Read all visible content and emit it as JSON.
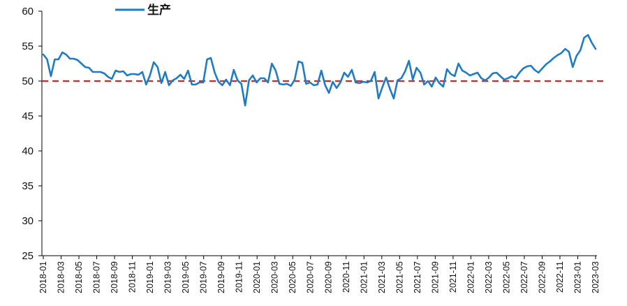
{
  "chart_data": {
    "type": "line",
    "ylim": [
      25,
      60
    ],
    "yticks": [
      "25",
      "30",
      "35",
      "40",
      "45",
      "50",
      "55",
      "60"
    ],
    "xticks": [
      "2018-01",
      "2018-03",
      "2018-05",
      "2018-07",
      "2018-09",
      "2018-11",
      "2019-01",
      "2019-03",
      "2019-05",
      "2019-07",
      "2019-09",
      "2019-11",
      "2020-01",
      "2020-03",
      "2020-05",
      "2020-07",
      "2020-09",
      "2020-11",
      "2021-01",
      "2021-03",
      "2021-05",
      "2021-07",
      "2021-09",
      "2021-11",
      "2022-01",
      "2022-03",
      "2022-05",
      "2022-07",
      "2022-09",
      "2022-11",
      "2023-01",
      "2023-03"
    ],
    "reference_line": {
      "y": 50,
      "color": "#e8201b",
      "style": "dashed"
    },
    "grid": false,
    "legend_position": "top",
    "series": [
      {
        "name": "生产",
        "color": "#1e7bc4",
        "values": [
          53.8,
          53.1,
          50.7,
          53.1,
          53.1,
          54.1,
          53.8,
          53.2,
          53.2,
          53.0,
          52.5,
          52.0,
          51.9,
          51.3,
          51.3,
          51.3,
          51.1,
          50.6,
          50.3,
          51.5,
          51.3,
          51.4,
          50.8,
          51.0,
          51.0,
          50.9,
          51.3,
          49.5,
          50.8,
          52.7,
          52.0,
          49.7,
          51.3,
          49.4,
          50.1,
          50.4,
          50.9,
          50.3,
          51.5,
          49.5,
          49.5,
          49.8,
          49.8,
          53.1,
          53.3,
          51.2,
          49.9,
          49.4,
          50.2,
          49.4,
          51.6,
          50.1,
          49.6,
          46.5,
          50.1,
          50.8,
          49.8,
          50.4,
          50.4,
          49.8,
          52.5,
          51.5,
          49.6,
          49.5,
          49.6,
          49.3,
          50.2,
          52.8,
          52.6,
          49.6,
          49.8,
          49.4,
          49.5,
          51.5,
          49.4,
          48.3,
          49.9,
          49.0,
          49.8,
          51.2,
          50.6,
          51.6,
          49.8,
          49.7,
          49.9,
          49.8,
          50.0,
          51.3,
          47.5,
          49.1,
          50.5,
          48.9,
          47.5,
          50.1,
          50.4,
          51.4,
          52.9,
          50.2,
          51.9,
          51.2,
          49.5,
          50.0,
          49.2,
          50.5,
          49.7,
          49.2,
          51.7,
          51.0,
          50.7,
          52.5,
          51.5,
          51.2,
          50.8,
          51.0,
          51.2,
          50.4,
          50.1,
          50.5,
          51.1,
          51.2,
          50.7,
          50.2,
          50.4,
          50.7,
          50.4,
          51.2,
          51.8,
          52.1,
          52.2,
          51.6,
          51.2,
          51.8,
          52.4,
          52.8,
          53.3,
          53.7,
          54.0,
          54.6,
          54.2,
          52.0,
          53.6,
          54.4,
          56.2,
          56.6,
          55.5,
          54.6
        ]
      }
    ]
  }
}
